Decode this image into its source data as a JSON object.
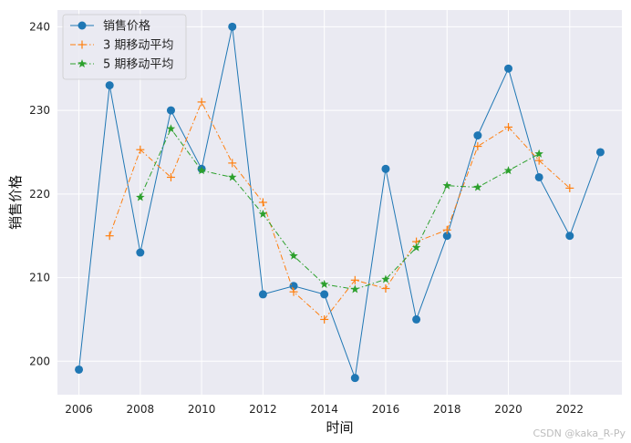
{
  "chart_data": {
    "type": "line",
    "xlabel": "时间",
    "ylabel": "销售价格",
    "xlim": [
      2005.3,
      2023.7
    ],
    "ylim": [
      196,
      242
    ],
    "xticks": [
      2006,
      2008,
      2010,
      2012,
      2014,
      2016,
      2018,
      2020,
      2022
    ],
    "yticks": [
      200,
      210,
      220,
      230,
      240
    ],
    "grid": true,
    "legend_position": "top-left",
    "series": [
      {
        "name": "销售价格",
        "color": "#1f77b4",
        "line_style": "solid",
        "marker": "circle",
        "x": [
          2006,
          2007,
          2008,
          2009,
          2010,
          2011,
          2012,
          2013,
          2014,
          2015,
          2016,
          2017,
          2018,
          2019,
          2020,
          2021,
          2022,
          2023
        ],
        "y": [
          199,
          233,
          213,
          230,
          223,
          240,
          208,
          209,
          208,
          198,
          223,
          205,
          215,
          227,
          235,
          222,
          215,
          225
        ]
      },
      {
        "name": "3 期移动平均",
        "color": "#ff7f0e",
        "line_style": "dashdot",
        "marker": "plus",
        "x": [
          2007,
          2008,
          2009,
          2010,
          2011,
          2012,
          2013,
          2014,
          2015,
          2016,
          2017,
          2018,
          2019,
          2020,
          2021,
          2022
        ],
        "y": [
          215.0,
          225.3,
          222.0,
          231.0,
          223.7,
          219.0,
          208.3,
          205.0,
          209.7,
          208.7,
          214.3,
          215.7,
          225.7,
          228.0,
          224.0,
          220.7
        ]
      },
      {
        "name": "5 期移动平均",
        "color": "#2ca02c",
        "line_style": "dashdot",
        "marker": "star",
        "x": [
          2008,
          2009,
          2010,
          2011,
          2012,
          2013,
          2014,
          2015,
          2016,
          2017,
          2018,
          2019,
          2020,
          2021
        ],
        "y": [
          219.6,
          227.8,
          222.8,
          222.0,
          217.6,
          212.6,
          209.2,
          208.6,
          209.8,
          213.6,
          221.0,
          220.8,
          222.8,
          224.8
        ]
      }
    ]
  },
  "watermark": "CSDN @kaka_R-Py"
}
